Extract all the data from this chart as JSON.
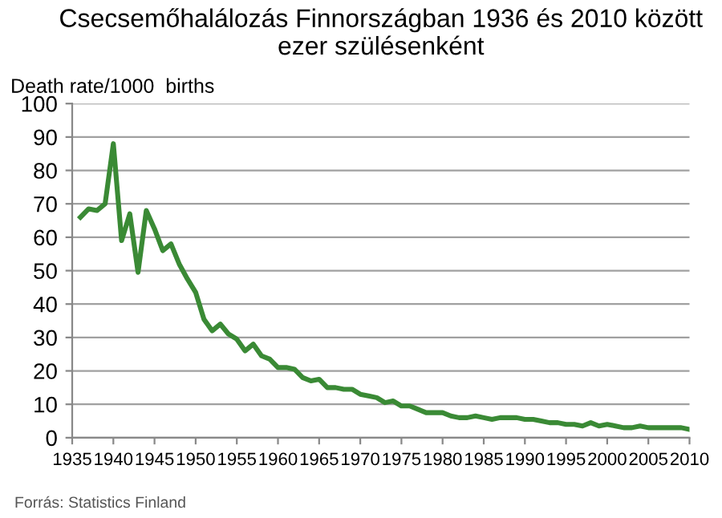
{
  "chart_data": {
    "type": "line",
    "title": "Csecsemőhalálozás Finnországban 1936 és 2010 között\nezer szülésenként",
    "ylabel": "Death rate/1000  births",
    "x": [
      1936,
      1937,
      1938,
      1939,
      1940,
      1941,
      1942,
      1943,
      1944,
      1945,
      1946,
      1947,
      1948,
      1949,
      1950,
      1951,
      1952,
      1953,
      1954,
      1955,
      1956,
      1957,
      1958,
      1959,
      1960,
      1961,
      1962,
      1963,
      1964,
      1965,
      1966,
      1967,
      1968,
      1969,
      1970,
      1971,
      1972,
      1973,
      1974,
      1975,
      1976,
      1977,
      1978,
      1979,
      1980,
      1981,
      1982,
      1983,
      1984,
      1985,
      1986,
      1987,
      1988,
      1989,
      1990,
      1991,
      1992,
      1993,
      1994,
      1995,
      1996,
      1997,
      1998,
      1999,
      2000,
      2001,
      2002,
      2003,
      2004,
      2005,
      2006,
      2007,
      2008,
      2009,
      2010
    ],
    "series": [
      {
        "color": "#3a8a35",
        "values": [
          66,
          68.5,
          68,
          70,
          88,
          59,
          67,
          49.5,
          68,
          62.5,
          56,
          58,
          52,
          47.5,
          43.5,
          35.5,
          32,
          34,
          31,
          29.5,
          26,
          28,
          24.5,
          23.5,
          21,
          21,
          20.5,
          18,
          17,
          17.5,
          15,
          15,
          14.5,
          14.5,
          13,
          12.5,
          12,
          10.5,
          11,
          9.5,
          9.5,
          8.5,
          7.5,
          7.5,
          7.5,
          6.5,
          6,
          6,
          6.5,
          6,
          5.5,
          6,
          6,
          6,
          5.5,
          5.5,
          5,
          4.5,
          4.5,
          4,
          4,
          3.5,
          4.5,
          3.5,
          4,
          3.5,
          3,
          3,
          3.5,
          3,
          3,
          3,
          3,
          3,
          2.5
        ]
      }
    ],
    "xlim": [
      1935,
      2010
    ],
    "xticks": [
      1935,
      1940,
      1945,
      1950,
      1955,
      1960,
      1965,
      1970,
      1975,
      1980,
      1985,
      1990,
      1995,
      2000,
      2005,
      2010
    ],
    "ylim": [
      0,
      100
    ],
    "yticks": [
      0,
      10,
      20,
      30,
      40,
      50,
      60,
      70,
      80,
      90,
      100
    ],
    "grid": "y",
    "marker": "none",
    "line_style": "solid",
    "annotations": [
      "Forrás: Statistics Finland"
    ]
  }
}
